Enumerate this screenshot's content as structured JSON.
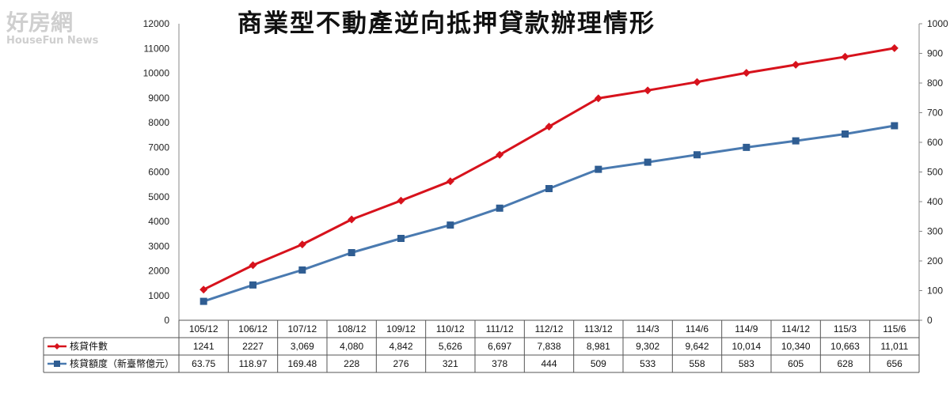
{
  "watermark": {
    "line1": "好房網",
    "line2": "HouseFun News"
  },
  "chart_data": {
    "type": "line",
    "title": "商業型不動產逆向抵押貸款辦理情形",
    "categories": [
      "105/12",
      "106/12",
      "107/12",
      "108/12",
      "109/12",
      "110/12",
      "111/12",
      "112/12",
      "113/12",
      "114/3",
      "114/6",
      "114/9",
      "114/12",
      "115/3",
      "115/6"
    ],
    "y_left": {
      "ylim": [
        0,
        12000
      ],
      "ticks": [
        "0",
        "1000",
        "2000",
        "3000",
        "4000",
        "5000",
        "6000",
        "7000",
        "8000",
        "9000",
        "10000",
        "11000",
        "12000"
      ]
    },
    "y_right": {
      "ylim": [
        0,
        1000
      ],
      "ticks": [
        "0",
        "100",
        "200",
        "300",
        "400",
        "500",
        "600",
        "700",
        "800",
        "900",
        "1000"
      ]
    },
    "grid": false,
    "legend": "data-table",
    "series": [
      {
        "name": "核貸件數",
        "axis": "left",
        "color": "#d7121c",
        "marker": "diamond",
        "values": [
          1241,
          2227,
          3069,
          4080,
          4842,
          5626,
          6697,
          7838,
          8981,
          9302,
          9642,
          10014,
          10340,
          10663,
          11011
        ],
        "labels": [
          "1241",
          "2227",
          "3,069",
          "4,080",
          "4,842",
          "5,626",
          "6,697",
          "7,838",
          "8,981",
          "9,302",
          "9,642",
          "10,014",
          "10,340",
          "10,663",
          "11,011"
        ]
      },
      {
        "name": "核貸額度（新臺幣億元）",
        "axis": "right",
        "color": "#4a7ab0",
        "marker": "square",
        "values": [
          63.75,
          118.97,
          169.48,
          228,
          276,
          321,
          378,
          444,
          509,
          533,
          558,
          583,
          605,
          628,
          656
        ],
        "labels": [
          "63.75",
          "118.97",
          "169.48",
          "228",
          "276",
          "321",
          "378",
          "444",
          "509",
          "533",
          "558",
          "583",
          "605",
          "628",
          "656"
        ]
      }
    ]
  }
}
